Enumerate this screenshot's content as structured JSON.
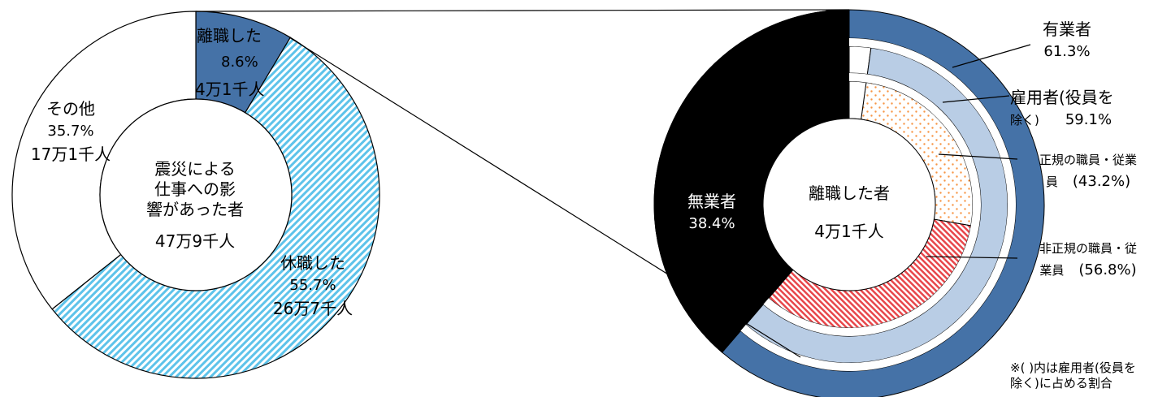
{
  "chart_data": [
    {
      "type": "donut",
      "center_label": "震災による仕事への影響があった者",
      "center_label_lines": [
        "震災による",
        "仕事への影",
        "響があった者"
      ],
      "center_total": "47万9千人",
      "slices": [
        {
          "name": "離職した",
          "percent_label": "8.6%",
          "count_label": "4万1千人",
          "value": 8.6,
          "color": "#4572A7",
          "pattern": "solid"
        },
        {
          "name": "休職した",
          "percent_label": "55.7%",
          "count_label": "26万7千人",
          "value": 55.7,
          "color": "#8ED3EE",
          "pattern": "diagonal-stripes"
        },
        {
          "name": "その他",
          "percent_label": "35.7%",
          "count_label": "17万1千人",
          "value": 35.7,
          "color": "#ffffff",
          "pattern": "solid"
        }
      ]
    },
    {
      "type": "donut",
      "center_label": "離職した者",
      "center_total": "4万1千人",
      "rings": [
        {
          "level": "outer",
          "slices": [
            {
              "name": "有業者",
              "percent_label": "61.3%",
              "value": 61.3,
              "color": "#4572A7",
              "pattern": "solid"
            },
            {
              "name": "無業者",
              "percent_label": "38.4%",
              "value": 38.4,
              "color": "#000000",
              "pattern": "solid"
            }
          ]
        },
        {
          "level": "middle",
          "slices": [
            {
              "name": "雇用者(役員を除く)",
              "name_lines": [
                "雇用者(役員を",
                "除く)"
              ],
              "percent_label": "59.1%",
              "value": 59.1,
              "color": "#B9CDE5",
              "pattern": "solid"
            }
          ]
        },
        {
          "level": "inner",
          "slices": [
            {
              "name": "正規の職員・従業員",
              "name_lines": [
                "正規の職員・従業",
                "員"
              ],
              "percent_label": "(43.2%)",
              "value": 43.2,
              "color": "#F79646",
              "pattern": "dots"
            },
            {
              "name": "非正規の職員・従業員",
              "name_lines": [
                "非正規の職員・従",
                "業員"
              ],
              "percent_label": "(56.8%)",
              "value": 56.8,
              "color": "#E8474B",
              "pattern": "diagonal-stripes"
            }
          ]
        }
      ],
      "note": "※( )内は雇用者(役員を除く)に占める割合",
      "note_lines": [
        "※( )内は雇用者(役員を",
        "除く)に占める割合"
      ]
    }
  ],
  "colors": {
    "outline": "#000000",
    "employed": "#4572A7",
    "employee": "#B9CDE5"
  }
}
